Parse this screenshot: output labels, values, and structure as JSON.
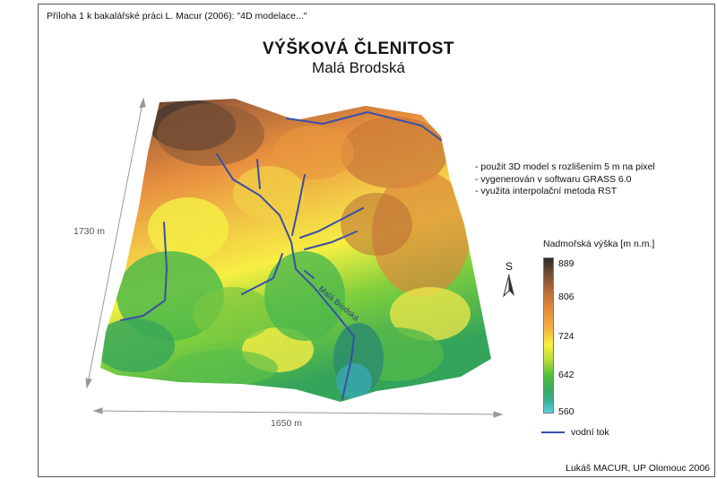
{
  "header_note": "Příloha 1 k bakalářské práci L. Macur (2006): \"4D modelace...\"",
  "title": "VÝŠKOVÁ ČLENITOST",
  "subtitle": "Malá Brodská",
  "notes": [
    "- použit 3D model s rozlišením 5 m na pixel",
    "- vygenerován v softwaru GRASS 6.0",
    "- využita interpolační metoda RST"
  ],
  "legend": {
    "title": "Nadmořská výška [m n.m.]",
    "ticks": [
      "889",
      "806",
      "724",
      "642",
      "560"
    ],
    "river_label": "vodní tok"
  },
  "north_label": "S",
  "dimensions": {
    "height_label": "1730 m",
    "width_label": "1650 m"
  },
  "river_name": "Malá Brodská",
  "credit": "Lukáš MACUR, UP Olomouc 2006",
  "colors": {
    "river": "#3a4fa8",
    "frame": "#555555",
    "high": "#2b2b2b",
    "low": "#5fd0e0"
  }
}
